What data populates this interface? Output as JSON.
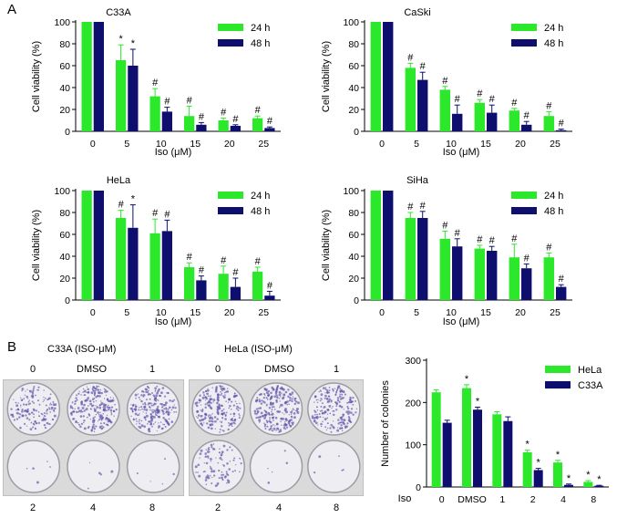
{
  "panel_labels": [
    "A",
    "B"
  ],
  "colors": {
    "green": "#2BE82B",
    "navy": "#0E0E6E"
  },
  "chart_data": [
    {
      "type": "bar",
      "title": "C33A",
      "ylabel": "Cell viability (%)",
      "xlabel": "Iso (μM)",
      "categories": [
        "0",
        "5",
        "10",
        "15",
        "20",
        "25"
      ],
      "ylim": [
        0,
        100
      ],
      "yticks": [
        "0",
        "20",
        "40",
        "60",
        "80",
        "100"
      ],
      "series": [
        {
          "name": "24 h",
          "values": [
            100,
            65,
            32,
            14,
            10,
            12
          ],
          "errors": [
            0,
            14,
            7,
            9,
            2,
            2
          ],
          "marks": [
            "",
            "*",
            "#",
            "#",
            "#",
            "#"
          ]
        },
        {
          "name": "48 h",
          "values": [
            100,
            60,
            18,
            6,
            5,
            3
          ],
          "errors": [
            0,
            15,
            4,
            2,
            1,
            1
          ],
          "marks": [
            "",
            "*",
            "#",
            "#",
            "#",
            "#"
          ]
        }
      ]
    },
    {
      "type": "bar",
      "title": "CaSki",
      "ylabel": "Cell viability (%)",
      "xlabel": "Iso (μM)",
      "categories": [
        "0",
        "5",
        "10",
        "15",
        "20",
        "25"
      ],
      "ylim": [
        0,
        100
      ],
      "yticks": [
        "0",
        "20",
        "40",
        "60",
        "80",
        "100"
      ],
      "series": [
        {
          "name": "24 h",
          "values": [
            100,
            58,
            38,
            26,
            19,
            14
          ],
          "errors": [
            0,
            4,
            3,
            3,
            2,
            4
          ],
          "marks": [
            "",
            "#",
            "#",
            "#",
            "#",
            "#"
          ]
        },
        {
          "name": "48 h",
          "values": [
            100,
            47,
            16,
            17,
            6,
            1
          ],
          "errors": [
            0,
            7,
            8,
            7,
            3,
            1
          ],
          "marks": [
            "",
            "#",
            "#",
            "#",
            "#",
            "#"
          ]
        }
      ]
    },
    {
      "type": "bar",
      "title": "HeLa",
      "ylabel": "Cell viability (%)",
      "xlabel": "Iso (μM)",
      "categories": [
        "0",
        "5",
        "10",
        "15",
        "20",
        "25"
      ],
      "ylim": [
        0,
        100
      ],
      "yticks": [
        "0",
        "20",
        "40",
        "60",
        "80",
        "100"
      ],
      "series": [
        {
          "name": "24 h",
          "values": [
            100,
            75,
            61,
            30,
            24,
            26
          ],
          "errors": [
            0,
            7,
            13,
            4,
            7,
            4
          ],
          "marks": [
            "",
            "#",
            "#",
            "#",
            "#",
            "#"
          ]
        },
        {
          "name": "48 h",
          "values": [
            100,
            66,
            63,
            18,
            12,
            4
          ],
          "errors": [
            0,
            21,
            10,
            4,
            8,
            4
          ],
          "marks": [
            "",
            "*",
            "#",
            "#",
            "#",
            "#"
          ]
        }
      ]
    },
    {
      "type": "bar",
      "title": "SiHa",
      "ylabel": "Cell viability (%)",
      "xlabel": "Iso (μM)",
      "categories": [
        "0",
        "5",
        "10",
        "15",
        "20",
        "25"
      ],
      "ylim": [
        0,
        100
      ],
      "yticks": [
        "0",
        "20",
        "40",
        "60",
        "80",
        "100"
      ],
      "series": [
        {
          "name": "24 h",
          "values": [
            100,
            75,
            56,
            47,
            39,
            39
          ],
          "errors": [
            0,
            5,
            7,
            3,
            12,
            4
          ],
          "marks": [
            "",
            "#",
            "#",
            "#",
            "#",
            "#"
          ]
        },
        {
          "name": "48 h",
          "values": [
            100,
            75,
            49,
            45,
            29,
            12
          ],
          "errors": [
            0,
            6,
            7,
            4,
            4,
            2
          ],
          "marks": [
            "",
            "#",
            "#",
            "#",
            "#",
            "#"
          ]
        }
      ]
    },
    {
      "type": "bar",
      "title": "",
      "ylabel": "Number of colonies",
      "xlabel": "Iso",
      "categories": [
        "0",
        "DMSO",
        "1",
        "2",
        "4",
        "8"
      ],
      "ylim": [
        0,
        300
      ],
      "yticks": [
        "0",
        "100",
        "200",
        "300"
      ],
      "series": [
        {
          "name": "HeLa",
          "values": [
            224,
            234,
            172,
            82,
            58,
            12
          ],
          "errors": [
            6,
            8,
            6,
            5,
            5,
            3
          ],
          "marks": [
            "",
            "*",
            "",
            "*",
            "*",
            "*"
          ]
        },
        {
          "name": "C33A",
          "values": [
            152,
            183,
            156,
            40,
            5,
            3
          ],
          "errors": [
            6,
            6,
            10,
            4,
            2,
            1
          ],
          "marks": [
            "",
            "*",
            "",
            "*",
            "*",
            "*"
          ]
        }
      ]
    }
  ],
  "colony_photos": [
    {
      "title": "C33A (ISO-μM)",
      "top_labels": [
        "0",
        "DMSO",
        "1"
      ],
      "bottom_labels": [
        "2",
        "4",
        "8"
      ]
    },
    {
      "title": "HeLa (ISO-μM)",
      "top_labels": [
        "0",
        "DMSO",
        "1"
      ],
      "bottom_labels": [
        "2",
        "4",
        "8"
      ]
    }
  ]
}
